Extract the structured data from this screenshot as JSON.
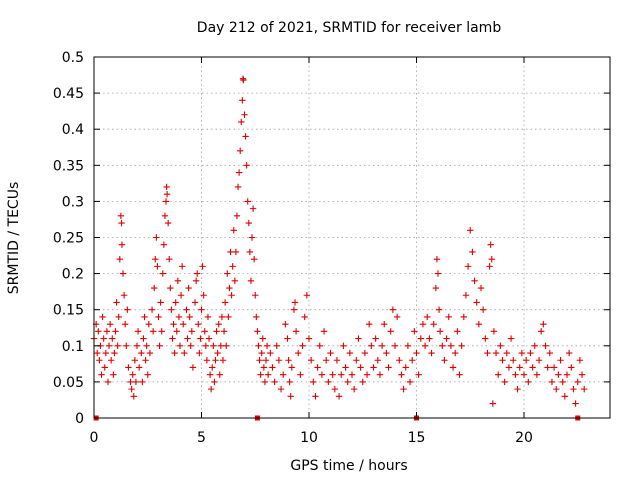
{
  "chart_data": {
    "type": "scatter",
    "title": "Day 212 of 2021, SRMTID for receiver lamb",
    "xlabel": "GPS time / hours",
    "ylabel": "SRMTID / TECUs",
    "xlim": [
      0,
      24
    ],
    "ylim": [
      0,
      0.5
    ],
    "xticks": [
      0,
      5,
      10,
      15,
      20
    ],
    "xtick_labels": [
      "0",
      "5",
      "10",
      "15",
      "20"
    ],
    "yticks": [
      0,
      0.05,
      0.1,
      0.15,
      0.2,
      0.25,
      0.3,
      0.35,
      0.4,
      0.45,
      0.5
    ],
    "ytick_labels": [
      "0",
      "0.05",
      "0.1",
      "0.15",
      "0.2",
      "0.25",
      "0.3",
      "0.35",
      "0.4",
      "0.45",
      "0.5"
    ],
    "grid": true,
    "marker": "+",
    "color": "#e00000",
    "series": [
      {
        "name": "SRMTID",
        "points": [
          [
            0.0,
            0.11
          ],
          [
            0.1,
            0.13
          ],
          [
            0.15,
            0.09
          ],
          [
            0.2,
            0.12
          ],
          [
            0.25,
            0.08
          ],
          [
            0.3,
            0.1
          ],
          [
            0.35,
            0.06
          ],
          [
            0.4,
            0.14
          ],
          [
            0.45,
            0.11
          ],
          [
            0.5,
            0.07
          ],
          [
            0.55,
            0.09
          ],
          [
            0.6,
            0.12
          ],
          [
            0.65,
            0.05
          ],
          [
            0.7,
            0.1
          ],
          [
            0.75,
            0.13
          ],
          [
            0.8,
            0.08
          ],
          [
            0.85,
            0.11
          ],
          [
            0.9,
            0.06
          ],
          [
            0.95,
            0.09
          ],
          [
            1.0,
            0.12
          ],
          [
            1.05,
            0.16
          ],
          [
            1.1,
            0.1
          ],
          [
            1.15,
            0.14
          ],
          [
            1.2,
            0.22
          ],
          [
            1.25,
            0.28
          ],
          [
            1.28,
            0.27
          ],
          [
            1.3,
            0.24
          ],
          [
            1.35,
            0.2
          ],
          [
            1.4,
            0.17
          ],
          [
            1.45,
            0.13
          ],
          [
            1.5,
            0.1
          ],
          [
            1.55,
            0.15
          ],
          [
            1.6,
            0.07
          ],
          [
            1.7,
            0.05
          ],
          [
            1.75,
            0.04
          ],
          [
            1.8,
            0.06
          ],
          [
            1.85,
            0.03
          ],
          [
            1.9,
            0.08
          ],
          [
            1.95,
            0.05
          ],
          [
            2.0,
            0.1
          ],
          [
            2.05,
            0.12
          ],
          [
            2.1,
            0.07
          ],
          [
            2.2,
            0.09
          ],
          [
            2.25,
            0.05
          ],
          [
            2.3,
            0.11
          ],
          [
            2.35,
            0.14
          ],
          [
            2.4,
            0.08
          ],
          [
            2.45,
            0.1
          ],
          [
            2.5,
            0.06
          ],
          [
            2.55,
            0.13
          ],
          [
            2.6,
            0.09
          ],
          [
            2.7,
            0.15
          ],
          [
            2.75,
            0.12
          ],
          [
            2.8,
            0.18
          ],
          [
            2.85,
            0.22
          ],
          [
            2.9,
            0.25
          ],
          [
            2.95,
            0.21
          ],
          [
            3.0,
            0.14
          ],
          [
            3.05,
            0.1
          ],
          [
            3.1,
            0.16
          ],
          [
            3.15,
            0.12
          ],
          [
            3.2,
            0.2
          ],
          [
            3.25,
            0.24
          ],
          [
            3.3,
            0.28
          ],
          [
            3.35,
            0.3
          ],
          [
            3.38,
            0.32
          ],
          [
            3.4,
            0.31
          ],
          [
            3.45,
            0.27
          ],
          [
            3.5,
            0.22
          ],
          [
            3.55,
            0.18
          ],
          [
            3.6,
            0.15
          ],
          [
            3.65,
            0.11
          ],
          [
            3.7,
            0.13
          ],
          [
            3.75,
            0.09
          ],
          [
            3.8,
            0.16
          ],
          [
            3.85,
            0.12
          ],
          [
            3.9,
            0.19
          ],
          [
            3.95,
            0.14
          ],
          [
            4.0,
            0.1
          ],
          [
            4.05,
            0.17
          ],
          [
            4.1,
            0.21
          ],
          [
            4.15,
            0.13
          ],
          [
            4.2,
            0.09
          ],
          [
            4.3,
            0.15
          ],
          [
            4.35,
            0.11
          ],
          [
            4.4,
            0.18
          ],
          [
            4.45,
            0.14
          ],
          [
            4.5,
            0.1
          ],
          [
            4.55,
            0.12
          ],
          [
            4.6,
            0.07
          ],
          [
            4.7,
            0.16
          ],
          [
            4.75,
            0.19
          ],
          [
            4.8,
            0.2
          ],
          [
            4.85,
            0.13
          ],
          [
            4.9,
            0.09
          ],
          [
            4.95,
            0.11
          ],
          [
            5.0,
            0.15
          ],
          [
            5.05,
            0.21
          ],
          [
            5.1,
            0.17
          ],
          [
            5.15,
            0.12
          ],
          [
            5.2,
            0.1
          ],
          [
            5.25,
            0.08
          ],
          [
            5.3,
            0.14
          ],
          [
            5.35,
            0.11
          ],
          [
            5.4,
            0.06
          ],
          [
            5.45,
            0.04
          ],
          [
            5.5,
            0.07
          ],
          [
            5.55,
            0.1
          ],
          [
            5.6,
            0.05
          ],
          [
            5.65,
            0.08
          ],
          [
            5.7,
            0.12
          ],
          [
            5.75,
            0.09
          ],
          [
            5.8,
            0.13
          ],
          [
            5.85,
            0.06
          ],
          [
            5.9,
            0.1
          ],
          [
            5.95,
            0.14
          ],
          [
            6.0,
            0.08
          ],
          [
            6.05,
            0.12
          ],
          [
            6.1,
            0.16
          ],
          [
            6.15,
            0.1
          ],
          [
            6.2,
            0.2
          ],
          [
            6.25,
            0.14
          ],
          [
            6.3,
            0.18
          ],
          [
            6.35,
            0.23
          ],
          [
            6.4,
            0.17
          ],
          [
            6.45,
            0.21
          ],
          [
            6.5,
            0.26
          ],
          [
            6.55,
            0.19
          ],
          [
            6.6,
            0.23
          ],
          [
            6.65,
            0.28
          ],
          [
            6.7,
            0.32
          ],
          [
            6.75,
            0.34
          ],
          [
            6.8,
            0.37
          ],
          [
            6.85,
            0.41
          ],
          [
            6.9,
            0.44
          ],
          [
            6.93,
            0.47
          ],
          [
            6.95,
            0.468
          ],
          [
            7.0,
            0.42
          ],
          [
            7.05,
            0.39
          ],
          [
            7.1,
            0.35
          ],
          [
            7.15,
            0.3
          ],
          [
            7.2,
            0.27
          ],
          [
            7.25,
            0.23
          ],
          [
            7.3,
            0.19
          ],
          [
            7.35,
            0.25
          ],
          [
            7.4,
            0.29
          ],
          [
            7.45,
            0.22
          ],
          [
            7.5,
            0.17
          ],
          [
            7.55,
            0.14
          ],
          [
            7.6,
            0.12
          ],
          [
            7.65,
            0.1
          ],
          [
            7.7,
            0.08
          ],
          [
            7.75,
            0.06
          ],
          [
            7.8,
            0.09
          ],
          [
            7.85,
            0.11
          ],
          [
            7.9,
            0.07
          ],
          [
            7.95,
            0.05
          ],
          [
            8.0,
            0.08
          ],
          [
            8.05,
            0.1
          ],
          [
            8.1,
            0.06
          ],
          [
            8.2,
            0.09
          ],
          [
            8.3,
            0.07
          ],
          [
            8.4,
            0.05
          ],
          [
            8.5,
            0.1
          ],
          [
            8.6,
            0.08
          ],
          [
            8.7,
            0.04
          ],
          [
            8.8,
            0.06
          ],
          [
            8.9,
            0.13
          ],
          [
            9.0,
            0.11
          ],
          [
            9.05,
            0.08
          ],
          [
            9.1,
            0.05
          ],
          [
            9.15,
            0.03
          ],
          [
            9.2,
            0.07
          ],
          [
            9.3,
            0.15
          ],
          [
            9.35,
            0.16
          ],
          [
            9.4,
            0.12
          ],
          [
            9.5,
            0.09
          ],
          [
            9.6,
            0.06
          ],
          [
            9.7,
            0.1
          ],
          [
            9.8,
            0.14
          ],
          [
            9.9,
            0.17
          ],
          [
            10.0,
            0.11
          ],
          [
            10.1,
            0.08
          ],
          [
            10.2,
            0.05
          ],
          [
            10.3,
            0.03
          ],
          [
            10.4,
            0.07
          ],
          [
            10.5,
            0.1
          ],
          [
            10.6,
            0.06
          ],
          [
            10.7,
            0.12
          ],
          [
            10.8,
            0.08
          ],
          [
            10.9,
            0.05
          ],
          [
            11.0,
            0.09
          ],
          [
            11.1,
            0.06
          ],
          [
            11.2,
            0.04
          ],
          [
            11.3,
            0.08
          ],
          [
            11.4,
            0.03
          ],
          [
            11.5,
            0.06
          ],
          [
            11.6,
            0.1
          ],
          [
            11.7,
            0.07
          ],
          [
            11.8,
            0.05
          ],
          [
            11.9,
            0.09
          ],
          [
            12.0,
            0.06
          ],
          [
            12.1,
            0.04
          ],
          [
            12.2,
            0.08
          ],
          [
            12.3,
            0.11
          ],
          [
            12.4,
            0.07
          ],
          [
            12.5,
            0.05
          ],
          [
            12.6,
            0.09
          ],
          [
            12.7,
            0.06
          ],
          [
            12.8,
            0.13
          ],
          [
            12.9,
            0.1
          ],
          [
            13.0,
            0.07
          ],
          [
            13.1,
            0.11
          ],
          [
            13.2,
            0.08
          ],
          [
            13.3,
            0.06
          ],
          [
            13.4,
            0.1
          ],
          [
            13.5,
            0.13
          ],
          [
            13.6,
            0.09
          ],
          [
            13.7,
            0.07
          ],
          [
            13.8,
            0.12
          ],
          [
            13.9,
            0.15
          ],
          [
            14.0,
            0.1
          ],
          [
            14.1,
            0.14
          ],
          [
            14.2,
            0.08
          ],
          [
            14.3,
            0.06
          ],
          [
            14.4,
            0.04
          ],
          [
            14.5,
            0.07
          ],
          [
            14.6,
            0.1
          ],
          [
            14.7,
            0.05
          ],
          [
            14.8,
            0.08
          ],
          [
            14.9,
            0.12
          ],
          [
            15.0,
            0.09
          ],
          [
            15.1,
            0.06
          ],
          [
            15.2,
            0.11
          ],
          [
            15.3,
            0.13
          ],
          [
            15.4,
            0.1
          ],
          [
            15.5,
            0.14
          ],
          [
            15.6,
            0.11
          ],
          [
            15.7,
            0.09
          ],
          [
            15.8,
            0.13
          ],
          [
            15.9,
            0.18
          ],
          [
            15.95,
            0.22
          ],
          [
            16.0,
            0.2
          ],
          [
            16.05,
            0.15
          ],
          [
            16.1,
            0.12
          ],
          [
            16.2,
            0.1
          ],
          [
            16.3,
            0.08
          ],
          [
            16.4,
            0.11
          ],
          [
            16.5,
            0.14
          ],
          [
            16.6,
            0.1
          ],
          [
            16.7,
            0.07
          ],
          [
            16.8,
            0.09
          ],
          [
            16.9,
            0.12
          ],
          [
            17.0,
            0.06
          ],
          [
            17.1,
            0.1
          ],
          [
            17.2,
            0.14
          ],
          [
            17.3,
            0.17
          ],
          [
            17.4,
            0.21
          ],
          [
            17.5,
            0.26
          ],
          [
            17.6,
            0.23
          ],
          [
            17.7,
            0.19
          ],
          [
            17.8,
            0.16
          ],
          [
            17.9,
            0.13
          ],
          [
            18.0,
            0.18
          ],
          [
            18.1,
            0.15
          ],
          [
            18.2,
            0.11
          ],
          [
            18.3,
            0.09
          ],
          [
            18.4,
            0.21
          ],
          [
            18.45,
            0.24
          ],
          [
            18.5,
            0.22
          ],
          [
            18.55,
            0.02
          ],
          [
            18.6,
            0.12
          ],
          [
            18.7,
            0.09
          ],
          [
            18.8,
            0.06
          ],
          [
            18.9,
            0.1
          ],
          [
            19.0,
            0.08
          ],
          [
            19.1,
            0.05
          ],
          [
            19.2,
            0.09
          ],
          [
            19.3,
            0.07
          ],
          [
            19.4,
            0.11
          ],
          [
            19.5,
            0.08
          ],
          [
            19.6,
            0.06
          ],
          [
            19.7,
            0.04
          ],
          [
            19.8,
            0.07
          ],
          [
            19.9,
            0.09
          ],
          [
            20.0,
            0.06
          ],
          [
            20.1,
            0.08
          ],
          [
            20.2,
            0.05
          ],
          [
            20.3,
            0.09
          ],
          [
            20.4,
            0.07
          ],
          [
            20.5,
            0.1
          ],
          [
            20.6,
            0.06
          ],
          [
            20.7,
            0.08
          ],
          [
            20.8,
            0.12
          ],
          [
            20.9,
            0.13
          ],
          [
            21.0,
            0.1
          ],
          [
            21.1,
            0.07
          ],
          [
            21.2,
            0.09
          ],
          [
            21.3,
            0.05
          ],
          [
            21.4,
            0.07
          ],
          [
            21.5,
            0.04
          ],
          [
            21.6,
            0.06
          ],
          [
            21.7,
            0.08
          ],
          [
            21.8,
            0.05
          ],
          [
            21.9,
            0.03
          ],
          [
            22.0,
            0.06
          ],
          [
            22.1,
            0.09
          ],
          [
            22.2,
            0.07
          ],
          [
            22.3,
            0.04
          ],
          [
            22.4,
            0.02
          ],
          [
            22.5,
            0.05
          ],
          [
            22.6,
            0.08
          ],
          [
            22.7,
            0.06
          ],
          [
            22.8,
            0.04
          ]
        ]
      }
    ],
    "axis_markers_x": [
      0.1,
      7.6,
      15.0,
      22.5
    ]
  }
}
